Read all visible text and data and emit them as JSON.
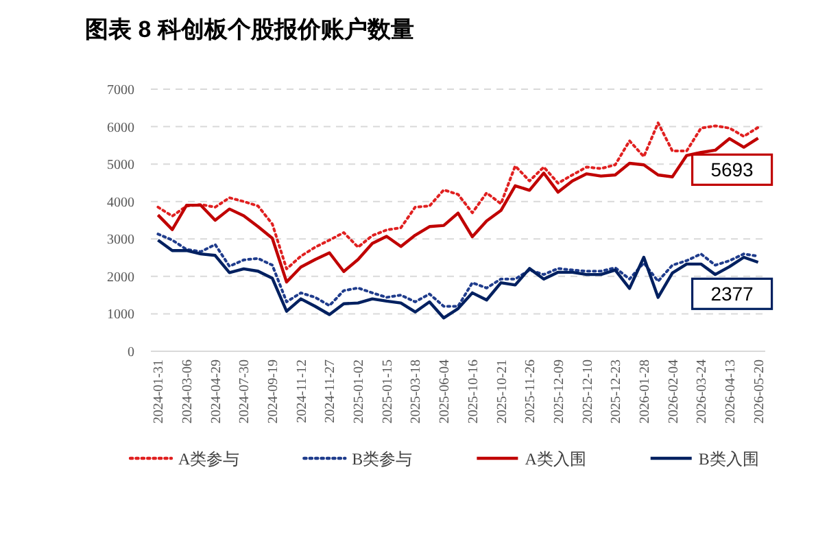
{
  "chart_data": {
    "type": "line",
    "title": "图表 8 科创板个股报价账户数量",
    "categories": [
      "2024-01-31",
      null,
      "2024-03-06",
      null,
      "2024-04-29",
      null,
      "2024-07-30",
      null,
      "2024-09-19",
      null,
      "2024-11-12",
      null,
      "2024-11-27",
      null,
      "2025-01-02",
      null,
      "2025-01-15",
      null,
      "2025-03-18",
      null,
      "2025-06-04",
      null,
      "2025-10-16",
      null,
      "2025-10-21",
      null,
      "2025-11-26",
      null,
      "2025-12-09",
      null,
      "2025-12-10",
      null,
      "2025-12-23",
      null,
      "2026-01-28",
      null,
      "2026-02-04",
      null,
      "2026-03-24",
      null,
      "2026-04-13",
      null,
      "2026-05-20"
    ],
    "series": [
      {
        "name": "A类参与",
        "color": "#e02020",
        "line_style": "dotted",
        "values": [
          3850,
          3610,
          3880,
          3920,
          3850,
          4100,
          4000,
          3880,
          3400,
          2200,
          2540,
          2780,
          2970,
          3170,
          2780,
          3090,
          3240,
          3300,
          3850,
          3880,
          4310,
          4190,
          3700,
          4230,
          3940,
          4950,
          4550,
          4920,
          4490,
          4710,
          4920,
          4880,
          4980,
          5620,
          5200,
          6100,
          5350,
          5350,
          5960,
          6020,
          5960,
          5740,
          5980
        ]
      },
      {
        "name": "B类参与",
        "color": "#1f3c8c",
        "line_style": "dotted",
        "values": [
          3130,
          2970,
          2720,
          2660,
          2850,
          2270,
          2440,
          2480,
          2300,
          1320,
          1560,
          1440,
          1220,
          1620,
          1690,
          1560,
          1440,
          1500,
          1320,
          1530,
          1200,
          1200,
          1830,
          1690,
          1930,
          1930,
          2170,
          2050,
          2210,
          2170,
          2140,
          2140,
          2230,
          1930,
          2360,
          1870,
          2300,
          2420,
          2600,
          2300,
          2420,
          2600,
          2540
        ]
      },
      {
        "name": "A类入围",
        "color": "#c00000",
        "line_style": "solid",
        "values": [
          3640,
          3250,
          3900,
          3900,
          3500,
          3800,
          3620,
          3330,
          3020,
          1850,
          2250,
          2450,
          2630,
          2130,
          2450,
          2880,
          3070,
          2800,
          3100,
          3330,
          3360,
          3690,
          3060,
          3480,
          3760,
          4420,
          4300,
          4760,
          4250,
          4550,
          4740,
          4680,
          4710,
          5020,
          4980,
          4710,
          4660,
          5230,
          5310,
          5370,
          5680,
          5450,
          5693
        ]
      },
      {
        "name": "B类入围",
        "color": "#002060",
        "line_style": "solid",
        "values": [
          2970,
          2690,
          2690,
          2600,
          2560,
          2100,
          2200,
          2140,
          1950,
          1070,
          1400,
          1200,
          980,
          1270,
          1290,
          1400,
          1340,
          1290,
          1050,
          1320,
          890,
          1140,
          1560,
          1370,
          1830,
          1770,
          2210,
          1930,
          2110,
          2110,
          2050,
          2050,
          2170,
          1680,
          2510,
          1440,
          2090,
          2330,
          2330,
          2050,
          2260,
          2510,
          2377
        ]
      }
    ],
    "ylim": [
      0,
      7000
    ],
    "yticks": [
      0,
      1000,
      2000,
      3000,
      4000,
      5000,
      6000,
      7000
    ],
    "grid": "y",
    "legend": "bottom",
    "annotations": [
      {
        "text": "5693",
        "x": "2026-05-20",
        "y": 5693
      },
      {
        "text": "2377",
        "x": "2026-05-20",
        "y": 2377
      }
    ]
  }
}
